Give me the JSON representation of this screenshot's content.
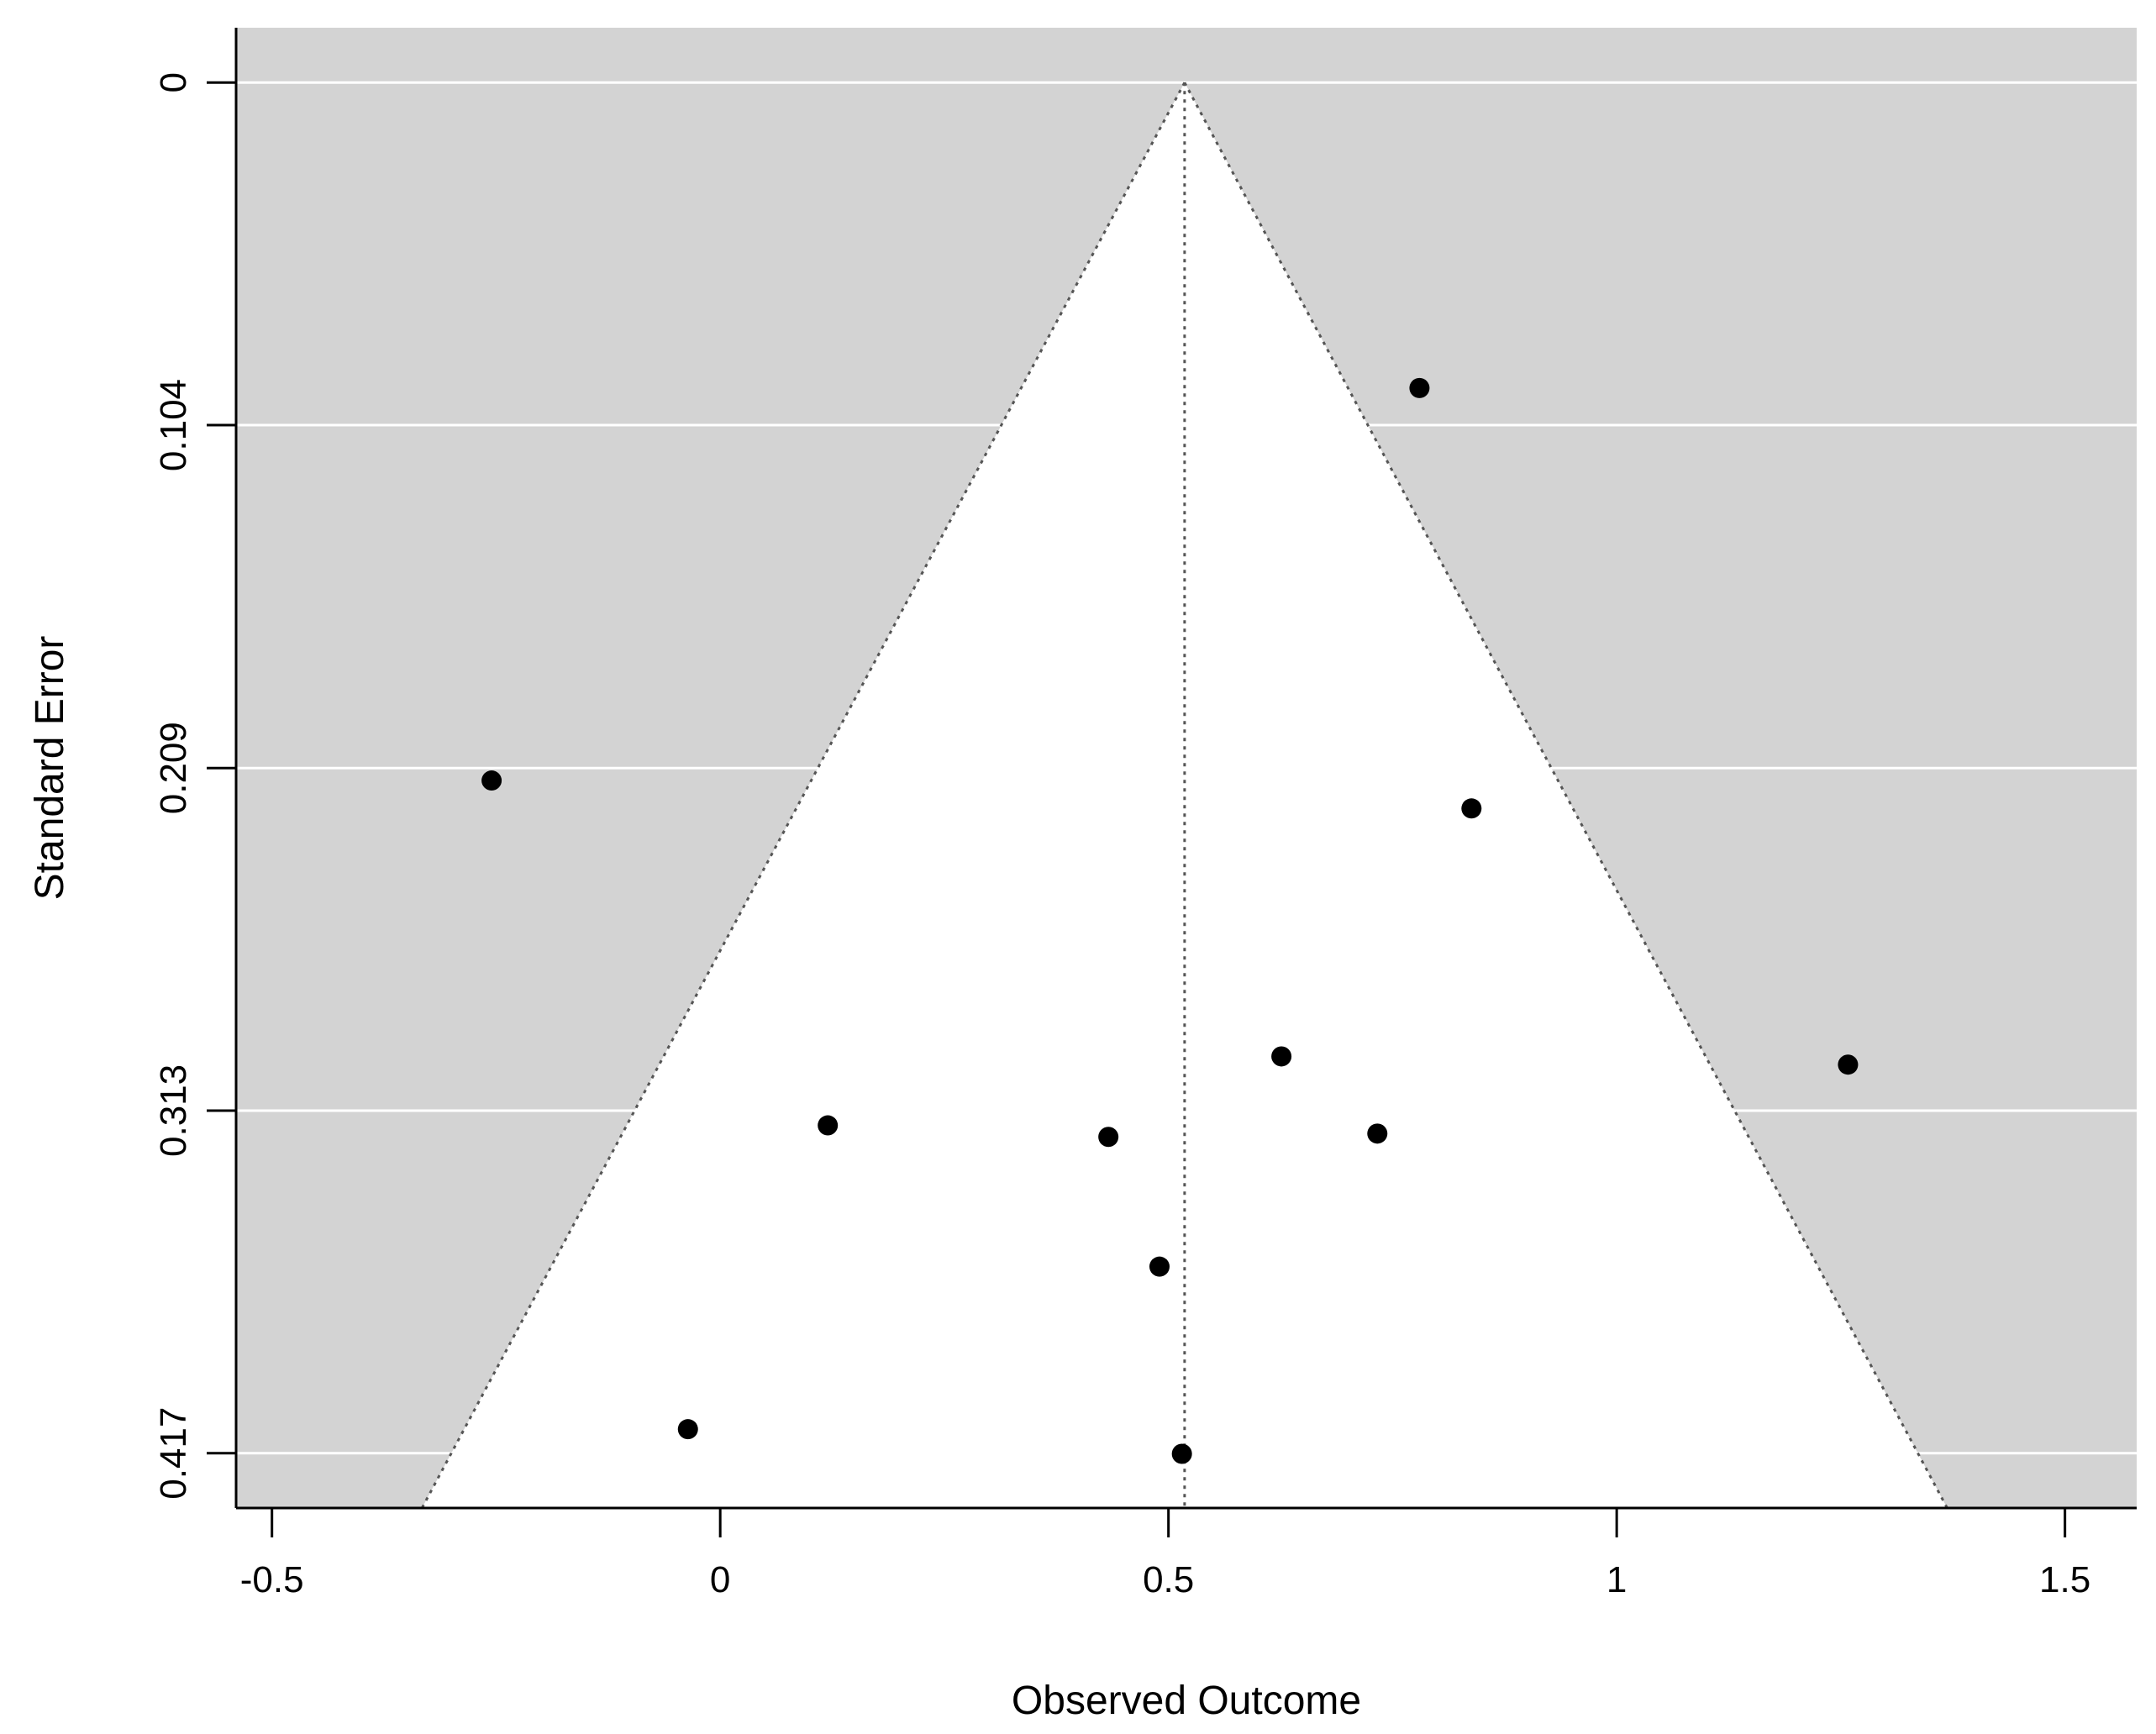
{
  "chart_data": {
    "type": "scatter",
    "title": "",
    "xlabel": "Observed Outcome",
    "ylabel": "Standard Error",
    "xlim": [
      -0.54,
      1.58
    ],
    "ylim": [
      0.434,
      -0.0167
    ],
    "y_reversed": true,
    "x_ticks": [
      {
        "value": -0.5,
        "label": "-0.5"
      },
      {
        "value": 0,
        "label": "0"
      },
      {
        "value": 0.5,
        "label": "0.5"
      },
      {
        "value": 1,
        "label": "1"
      },
      {
        "value": 1.5,
        "label": "1.5"
      }
    ],
    "y_ticks": [
      {
        "value": 0,
        "label": "0"
      },
      {
        "value": 0.1043,
        "label": "0.104"
      },
      {
        "value": 0.2087,
        "label": "0.209"
      },
      {
        "value": 0.313,
        "label": "0.313"
      },
      {
        "value": 0.4173,
        "label": "0.417"
      }
    ],
    "funnel": {
      "center": 0.518,
      "z": 1.96,
      "region_color": "#d3d3d3",
      "inside_color": "#ffffff",
      "line_color": "#555555",
      "gridline_color": "#ffffff"
    },
    "points": [
      {
        "x": 0.78,
        "y": 0.093
      },
      {
        "x": -0.255,
        "y": 0.2125
      },
      {
        "x": 0.838,
        "y": 0.221
      },
      {
        "x": 0.626,
        "y": 0.2965
      },
      {
        "x": 1.258,
        "y": 0.299
      },
      {
        "x": 0.12,
        "y": 0.3175
      },
      {
        "x": 0.433,
        "y": 0.321
      },
      {
        "x": 0.733,
        "y": 0.32
      },
      {
        "x": 0.49,
        "y": 0.3605
      },
      {
        "x": -0.036,
        "y": 0.41
      },
      {
        "x": 0.515,
        "y": 0.4175
      }
    ],
    "point_color": "#000000",
    "grid": true
  }
}
